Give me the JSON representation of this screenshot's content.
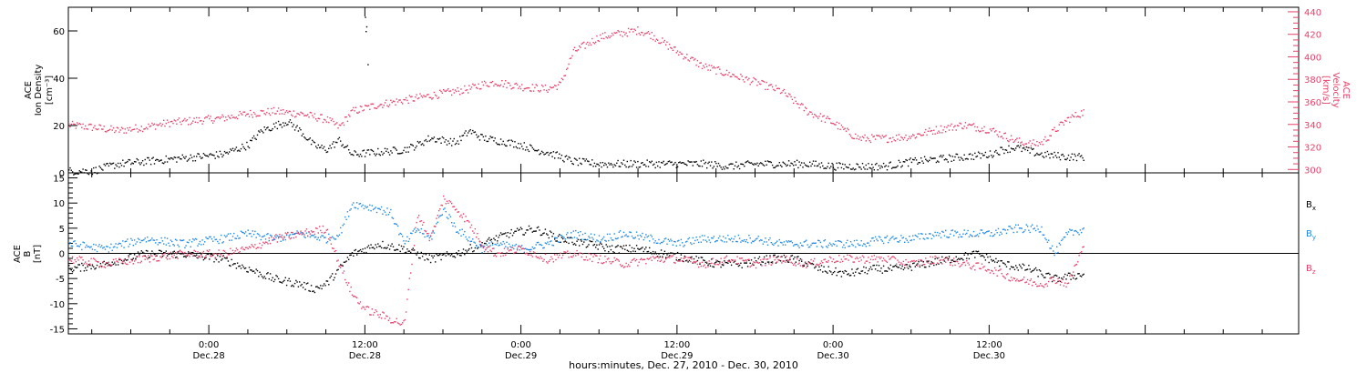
{
  "colors": {
    "black": "#000000",
    "pink": "#e8406a",
    "blue": "#1e88e5"
  },
  "x_axis": {
    "ticks": [
      {
        "time": "0:00",
        "date": "Dec.28",
        "hours_from_start": 24
      },
      {
        "time": "12:00",
        "date": "Dec.28",
        "hours_from_start": 36
      },
      {
        "time": "0:00",
        "date": "Dec.29",
        "hours_from_start": 48
      },
      {
        "time": "12:00",
        "date": "Dec.29",
        "hours_from_start": 60
      },
      {
        "time": "0:00",
        "date": "Dec.30",
        "hours_from_start": 72
      },
      {
        "time": "12:00",
        "date": "Dec.30",
        "hours_from_start": 84
      }
    ],
    "label": "hours:minutes, Dec. 27, 2010 - Dec. 30, 2010"
  },
  "chart_data": [
    {
      "type": "scatter",
      "panel": "top",
      "ylabel_left": [
        "ACE",
        "Ion Density",
        "[cm⁻³]"
      ],
      "ylabel_right": [
        "ACE",
        "Velocity",
        "[km/s]"
      ],
      "x_range_hours": [
        13.2,
        107.8
      ],
      "ylim_left": [
        0,
        70
      ],
      "yticks_left": [
        0,
        20,
        40,
        60
      ],
      "ylim_right": [
        297,
        444
      ],
      "yticks_right": [
        300,
        320,
        340,
        360,
        380,
        400,
        420,
        440
      ],
      "series": [
        {
          "axis": "left",
          "color": "#000000",
          "x": [
            13.2,
            15,
            17,
            19,
            21,
            23,
            25,
            27,
            28,
            29,
            30,
            31,
            32,
            33,
            34,
            35,
            37,
            39,
            40,
            41,
            43,
            44,
            45,
            47,
            48,
            49,
            50,
            52,
            54,
            56,
            58,
            60,
            62,
            64,
            66,
            68,
            70,
            72,
            74,
            76,
            77,
            78,
            80,
            82,
            84,
            85,
            86,
            88,
            90,
            91.3
          ],
          "y": [
            1,
            1,
            4,
            5,
            6,
            7,
            8,
            12,
            18,
            20,
            22,
            18,
            12,
            10,
            14,
            8,
            9,
            10,
            12,
            15,
            13,
            18,
            15,
            13,
            12,
            10,
            9,
            5,
            4,
            4,
            4,
            4,
            4,
            3,
            4,
            4,
            4,
            3,
            3,
            3,
            4,
            5,
            6,
            7,
            8,
            10,
            11,
            8,
            7,
            7
          ]
        },
        {
          "axis": "right",
          "color": "#e8406a",
          "x": [
            13.2,
            15,
            17,
            19,
            21,
            23,
            25,
            27,
            29,
            31,
            33,
            34,
            35,
            37,
            39,
            41,
            42,
            43,
            44,
            45,
            46,
            48,
            50,
            51,
            52,
            54,
            56,
            57,
            58,
            60,
            62,
            64,
            66,
            68,
            70,
            72,
            73,
            74,
            76,
            78,
            80,
            82,
            84,
            86,
            87,
            88,
            89,
            90,
            91.3
          ],
          "y": [
            340,
            338,
            335,
            338,
            342,
            344,
            346,
            350,
            352,
            350,
            345,
            338,
            352,
            358,
            362,
            366,
            368,
            370,
            372,
            376,
            378,
            374,
            372,
            376,
            405,
            418,
            422,
            424,
            420,
            405,
            392,
            385,
            378,
            370,
            352,
            342,
            334,
            328,
            328,
            330,
            336,
            340,
            336,
            326,
            323,
            324,
            335,
            345,
            352
          ]
        }
      ]
    },
    {
      "type": "scatter",
      "panel": "bottom",
      "ylabel_left": [
        "ACE",
        "B",
        "[nT]"
      ],
      "x_range_hours": [
        13.2,
        107.8
      ],
      "ylim": [
        -16,
        16
      ],
      "yticks": [
        -15,
        -10,
        -5,
        0,
        5,
        10,
        15
      ],
      "legend_placement": "right",
      "series": [
        {
          "name": "Bx",
          "color": "#000000",
          "x": [
            13.2,
            16,
            19,
            22,
            25,
            27,
            29,
            31,
            32,
            33,
            35,
            37,
            39,
            41,
            43,
            45,
            47,
            49,
            51,
            53,
            55,
            57,
            59,
            61,
            63,
            65,
            67,
            69,
            71,
            73,
            75,
            77,
            79,
            81,
            83,
            85,
            87,
            88,
            89,
            91.3
          ],
          "y": [
            -3,
            -2,
            0,
            0,
            -1,
            -3,
            -5,
            -6,
            -7,
            -6,
            0,
            2,
            1,
            -1,
            0,
            2,
            4,
            5,
            3,
            2,
            1,
            1,
            0,
            -1,
            -2,
            -2,
            -1,
            -1,
            -3,
            -4,
            -3,
            -3,
            -2,
            -1,
            0,
            -2,
            -3,
            -4,
            -5,
            -4
          ]
        },
        {
          "name": "By",
          "color": "#1e88e5",
          "x": [
            13.2,
            16,
            19,
            22,
            25,
            27,
            29,
            31,
            33,
            34,
            35,
            37,
            38,
            39,
            40,
            41,
            42,
            43,
            44,
            45,
            46,
            48,
            50,
            52,
            54,
            56,
            58,
            60,
            62,
            64,
            66,
            68,
            70,
            72,
            74,
            76,
            78,
            80,
            82,
            84,
            86,
            88,
            89,
            90,
            91.3
          ],
          "y": [
            2,
            1,
            3,
            2,
            3,
            4,
            3,
            4,
            3,
            4,
            10,
            9,
            8,
            2,
            5,
            3,
            9,
            5,
            3,
            1,
            2,
            1,
            2,
            4,
            3,
            4,
            3,
            2,
            3,
            3,
            3,
            2,
            2,
            2,
            2,
            3,
            3,
            4,
            4,
            4,
            5,
            5,
            0,
            4,
            5
          ]
        },
        {
          "name": "Bz",
          "color": "#e8406a",
          "x": [
            13.2,
            16,
            19,
            22,
            25,
            27,
            29,
            31,
            33,
            34,
            35,
            36,
            37,
            38,
            39,
            40,
            41,
            42,
            43,
            44,
            45,
            46,
            48,
            50,
            52,
            54,
            56,
            58,
            60,
            62,
            64,
            66,
            68,
            70,
            72,
            74,
            76,
            78,
            80,
            82,
            84,
            86,
            88,
            89,
            90,
            91.3
          ],
          "y": [
            -1,
            -2,
            -1,
            0,
            0,
            1,
            3,
            4,
            5,
            -2,
            -8,
            -11,
            -12,
            -13,
            -14,
            8,
            3,
            11,
            9,
            6,
            2,
            0,
            1,
            -1,
            0,
            -1,
            -2,
            -1,
            -1,
            -2,
            -1,
            -2,
            -1,
            -2,
            -1,
            -1,
            -1,
            -2,
            -1,
            -2,
            -3,
            -5,
            -6,
            -5,
            -6,
            2
          ]
        }
      ]
    }
  ]
}
